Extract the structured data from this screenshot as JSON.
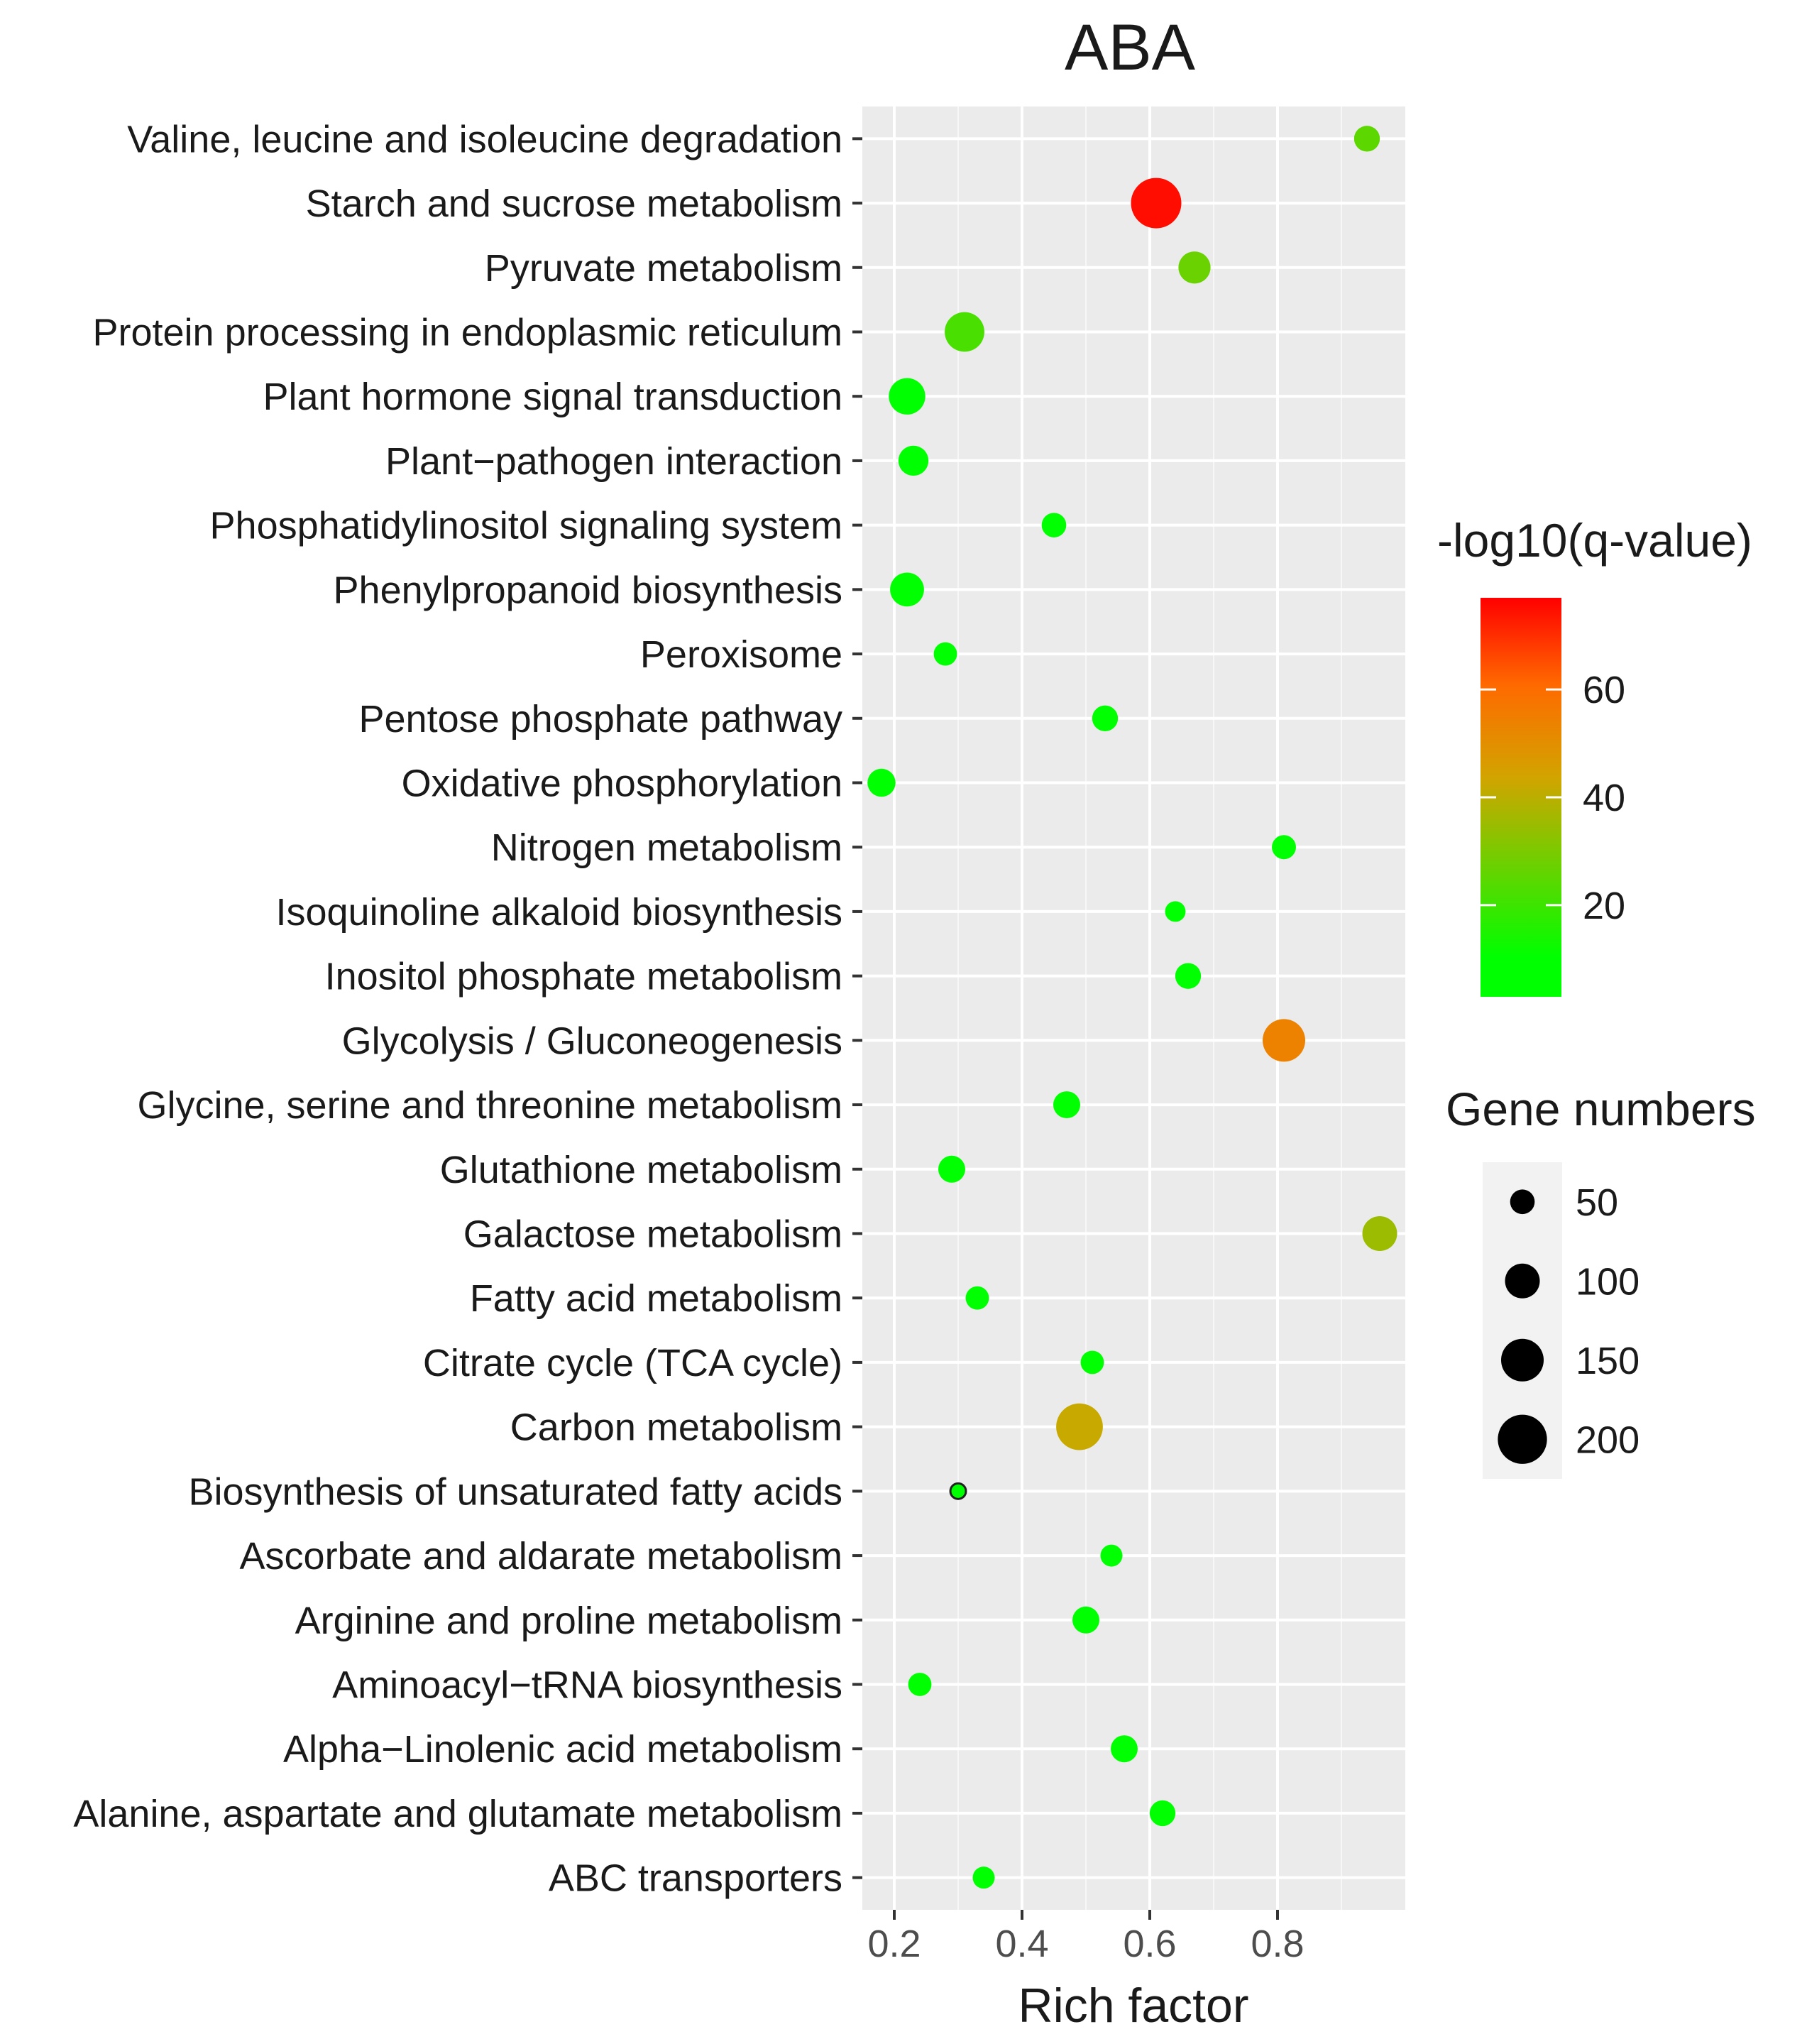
{
  "chart_data": {
    "type": "scatter",
    "title": "ABA",
    "xlabel": "Rich factor",
    "ylabel": "",
    "xlim": [
      0.15,
      1.0
    ],
    "xticks": [
      0.2,
      0.4,
      0.6,
      0.8
    ],
    "xtick_labels": [
      "0.2",
      "0.4",
      "0.6",
      "0.8"
    ],
    "grid": true,
    "points": [
      {
        "pathway": "Valine, leucine and isoleucine degradation",
        "rich_factor": 0.94,
        "q": 25,
        "genes": 55
      },
      {
        "pathway": "Starch and sucrose metabolism",
        "rich_factor": 0.61,
        "q": 75,
        "genes": 210
      },
      {
        "pathway": "Pyruvate metabolism",
        "rich_factor": 0.67,
        "q": 27,
        "genes": 85
      },
      {
        "pathway": "Protein processing in endoplasmic reticulum",
        "rich_factor": 0.31,
        "q": 22,
        "genes": 130
      },
      {
        "pathway": "Plant hormone signal transduction",
        "rich_factor": 0.22,
        "q": 7,
        "genes": 110
      },
      {
        "pathway": "Plant−pathogen interaction",
        "rich_factor": 0.23,
        "q": 6,
        "genes": 75
      },
      {
        "pathway": "Phosphatidylinositol signaling system",
        "rich_factor": 0.45,
        "q": 6,
        "genes": 50
      },
      {
        "pathway": "Phenylpropanoid biosynthesis",
        "rich_factor": 0.22,
        "q": 6,
        "genes": 95
      },
      {
        "pathway": "Peroxisome",
        "rich_factor": 0.28,
        "q": 6,
        "genes": 45
      },
      {
        "pathway": "Pentose phosphate pathway",
        "rich_factor": 0.53,
        "q": 6,
        "genes": 55
      },
      {
        "pathway": "Oxidative phosphorylation",
        "rich_factor": 0.18,
        "q": 6,
        "genes": 65
      },
      {
        "pathway": "Nitrogen metabolism",
        "rich_factor": 0.81,
        "q": 8,
        "genes": 48
      },
      {
        "pathway": "Isoquinoline alkaloid biosynthesis",
        "rich_factor": 0.64,
        "q": 5,
        "genes": 35
      },
      {
        "pathway": "Inositol phosphate metabolism",
        "rich_factor": 0.66,
        "q": 10,
        "genes": 55
      },
      {
        "pathway": "Glycolysis / Gluconeogenesis",
        "rich_factor": 0.81,
        "q": 54,
        "genes": 150
      },
      {
        "pathway": "Glycine, serine and threonine metabolism",
        "rich_factor": 0.47,
        "q": 6,
        "genes": 60
      },
      {
        "pathway": "Glutathione metabolism",
        "rich_factor": 0.29,
        "q": 6,
        "genes": 60
      },
      {
        "pathway": "Galactose metabolism",
        "rich_factor": 0.96,
        "q": 35,
        "genes": 100
      },
      {
        "pathway": "Fatty acid metabolism",
        "rich_factor": 0.33,
        "q": 6,
        "genes": 45
      },
      {
        "pathway": "Citrate cycle (TCA cycle)",
        "rich_factor": 0.51,
        "q": 6,
        "genes": 45
      },
      {
        "pathway": "Carbon metabolism",
        "rich_factor": 0.49,
        "q": 42,
        "genes": 180
      },
      {
        "pathway": "Biosynthesis of unsaturated fatty acids",
        "rich_factor": 0.3,
        "q": 4,
        "genes": 20
      },
      {
        "pathway": "Ascorbate and aldarate metabolism",
        "rich_factor": 0.54,
        "q": 5,
        "genes": 40
      },
      {
        "pathway": "Arginine and proline metabolism",
        "rich_factor": 0.5,
        "q": 6,
        "genes": 60
      },
      {
        "pathway": "Aminoacyl−tRNA biosynthesis",
        "rich_factor": 0.24,
        "q": 5,
        "genes": 45
      },
      {
        "pathway": "Alpha−Linolenic acid metabolism",
        "rich_factor": 0.56,
        "q": 7,
        "genes": 60
      },
      {
        "pathway": "Alanine, aspartate and glutamate metabolism",
        "rich_factor": 0.62,
        "q": 7,
        "genes": 55
      },
      {
        "pathway": "ABC transporters",
        "rich_factor": 0.34,
        "q": 5,
        "genes": 40
      }
    ],
    "color_legend": {
      "title": "-log10(q-value)",
      "range": [
        3,
        77
      ],
      "ticks": [
        20,
        40,
        60
      ],
      "tick_labels": [
        "20",
        "40",
        "60"
      ],
      "colors": [
        "#00ff00",
        "#ffa500",
        "#ff0000"
      ]
    },
    "size_legend": {
      "title": "Gene numbers",
      "values": [
        50,
        100,
        150,
        200
      ],
      "labels": [
        "50",
        "100",
        "150",
        "200"
      ]
    }
  }
}
